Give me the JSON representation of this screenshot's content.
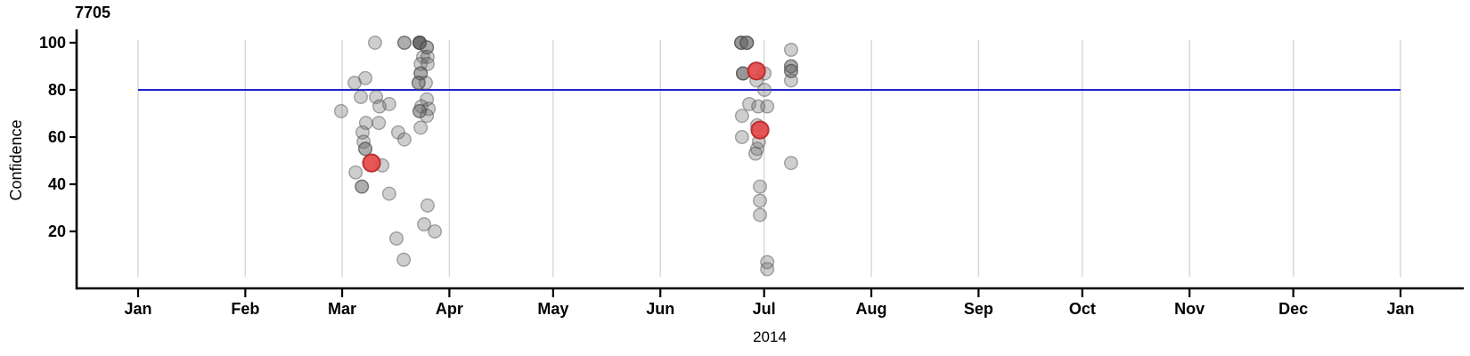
{
  "chart_data": {
    "type": "scatter",
    "title": "7705",
    "xlabel": "2014",
    "ylabel": "Confidence",
    "x_axis": {
      "kind": "date-months-of-2014",
      "tick_labels": [
        "Jan",
        "Feb",
        "Mar",
        "Apr",
        "May",
        "Jun",
        "Jul",
        "Aug",
        "Sep",
        "Oct",
        "Nov",
        "Dec",
        "Jan"
      ],
      "tick_days": [
        0,
        31,
        59,
        90,
        120,
        151,
        181,
        212,
        243,
        273,
        304,
        334,
        365
      ],
      "domain_days": [
        0,
        365
      ],
      "grid": "vertical-light-gray-lines-at-month-starts"
    },
    "y_axis": {
      "label": "Confidence",
      "tick_values": [
        20,
        40,
        60,
        80,
        100
      ],
      "lim": [
        0,
        105
      ]
    },
    "reference_line": {
      "orientation": "horizontal",
      "value": 80,
      "color": "#0000cc"
    },
    "series": [
      {
        "name": "observations",
        "marker": "circle",
        "radius_px": 7.3,
        "fill": "rgb(105,105,105)",
        "fill_opacity": 0.33,
        "stroke": "rgb(70,70,70)",
        "stroke_opacity": 0.45,
        "points": [
          {
            "day": 68.5,
            "confidence": 100,
            "overlap": 1
          },
          {
            "day": 77.0,
            "confidence": 100,
            "overlap": 2
          },
          {
            "day": 81.4,
            "confidence": 100,
            "overlap": 8
          },
          {
            "day": 83.5,
            "confidence": 98,
            "overlap": 2
          },
          {
            "day": 82.4,
            "confidence": 94,
            "overlap": 1
          },
          {
            "day": 83.7,
            "confidence": 94,
            "overlap": 1
          },
          {
            "day": 81.7,
            "confidence": 91,
            "overlap": 1
          },
          {
            "day": 83.7,
            "confidence": 91,
            "overlap": 1
          },
          {
            "day": 81.7,
            "confidence": 87,
            "overlap": 2
          },
          {
            "day": 81.1,
            "confidence": 83,
            "overlap": 2
          },
          {
            "day": 83.2,
            "confidence": 83,
            "overlap": 1
          },
          {
            "day": 62.6,
            "confidence": 83,
            "overlap": 1
          },
          {
            "day": 65.7,
            "confidence": 85,
            "overlap": 1
          },
          {
            "day": 64.4,
            "confidence": 77,
            "overlap": 1
          },
          {
            "day": 68.8,
            "confidence": 77,
            "overlap": 1
          },
          {
            "day": 69.8,
            "confidence": 73,
            "overlap": 1
          },
          {
            "day": 72.6,
            "confidence": 74,
            "overlap": 1
          },
          {
            "day": 58.7,
            "confidence": 71,
            "overlap": 1
          },
          {
            "day": 83.5,
            "confidence": 76,
            "overlap": 1
          },
          {
            "day": 81.9,
            "confidence": 73,
            "overlap": 1
          },
          {
            "day": 84.0,
            "confidence": 72,
            "overlap": 1
          },
          {
            "day": 81.4,
            "confidence": 71,
            "overlap": 2
          },
          {
            "day": 83.5,
            "confidence": 69,
            "overlap": 1
          },
          {
            "day": 81.7,
            "confidence": 64,
            "overlap": 1
          },
          {
            "day": 65.9,
            "confidence": 66,
            "overlap": 1
          },
          {
            "day": 69.6,
            "confidence": 66,
            "overlap": 1
          },
          {
            "day": 64.9,
            "confidence": 62,
            "overlap": 1
          },
          {
            "day": 75.2,
            "confidence": 62,
            "overlap": 1
          },
          {
            "day": 65.2,
            "confidence": 58,
            "overlap": 1
          },
          {
            "day": 77.0,
            "confidence": 59,
            "overlap": 1
          },
          {
            "day": 65.7,
            "confidence": 55,
            "overlap": 2
          },
          {
            "day": 70.6,
            "confidence": 48,
            "overlap": 1
          },
          {
            "day": 62.9,
            "confidence": 45,
            "overlap": 1
          },
          {
            "day": 64.7,
            "confidence": 39,
            "overlap": 2
          },
          {
            "day": 72.6,
            "confidence": 36,
            "overlap": 1
          },
          {
            "day": 83.7,
            "confidence": 31,
            "overlap": 1
          },
          {
            "day": 82.7,
            "confidence": 23,
            "overlap": 1
          },
          {
            "day": 85.8,
            "confidence": 20,
            "overlap": 1
          },
          {
            "day": 74.7,
            "confidence": 17,
            "overlap": 1
          },
          {
            "day": 76.8,
            "confidence": 8,
            "overlap": 1
          },
          {
            "day": 174.4,
            "confidence": 100,
            "overlap": 3
          },
          {
            "day": 176.0,
            "confidence": 100,
            "overlap": 3
          },
          {
            "day": 174.9,
            "confidence": 87,
            "overlap": 3
          },
          {
            "day": 181.1,
            "confidence": 87,
            "overlap": 1
          },
          {
            "day": 178.8,
            "confidence": 84,
            "overlap": 1
          },
          {
            "day": 181.1,
            "confidence": 80,
            "overlap": 1
          },
          {
            "day": 176.7,
            "confidence": 74,
            "overlap": 1
          },
          {
            "day": 179.3,
            "confidence": 73,
            "overlap": 1
          },
          {
            "day": 181.9,
            "confidence": 73,
            "overlap": 1
          },
          {
            "day": 174.6,
            "confidence": 69,
            "overlap": 1
          },
          {
            "day": 179.0,
            "confidence": 65,
            "overlap": 1
          },
          {
            "day": 174.6,
            "confidence": 60,
            "overlap": 1
          },
          {
            "day": 179.5,
            "confidence": 58,
            "overlap": 1
          },
          {
            "day": 179.0,
            "confidence": 55,
            "overlap": 1
          },
          {
            "day": 178.5,
            "confidence": 53,
            "overlap": 1
          },
          {
            "day": 188.8,
            "confidence": 97,
            "overlap": 1
          },
          {
            "day": 188.8,
            "confidence": 90,
            "overlap": 2
          },
          {
            "day": 188.8,
            "confidence": 88,
            "overlap": 2
          },
          {
            "day": 188.8,
            "confidence": 84,
            "overlap": 1
          },
          {
            "day": 188.8,
            "confidence": 49,
            "overlap": 1
          },
          {
            "day": 179.8,
            "confidence": 39,
            "overlap": 1
          },
          {
            "day": 179.8,
            "confidence": 33,
            "overlap": 1
          },
          {
            "day": 179.8,
            "confidence": 27,
            "overlap": 1
          },
          {
            "day": 181.9,
            "confidence": 7,
            "overlap": 1
          },
          {
            "day": 181.9,
            "confidence": 4,
            "overlap": 1
          }
        ]
      },
      {
        "name": "highlighted-observations",
        "marker": "circle-large",
        "radius_px": 9.6,
        "fill": "#e64545",
        "fill_opacity": 0.9,
        "stroke": "#bb3030",
        "stroke_opacity": 1,
        "points": [
          {
            "day": 67.5,
            "confidence": 49
          },
          {
            "day": 178.8,
            "confidence": 88
          },
          {
            "day": 179.8,
            "confidence": 63
          }
        ]
      }
    ],
    "style": {
      "axis_color": "#000000",
      "grid_color": "#d6d6d6",
      "tick_label_color": "#000000",
      "background": "#ffffff"
    }
  }
}
